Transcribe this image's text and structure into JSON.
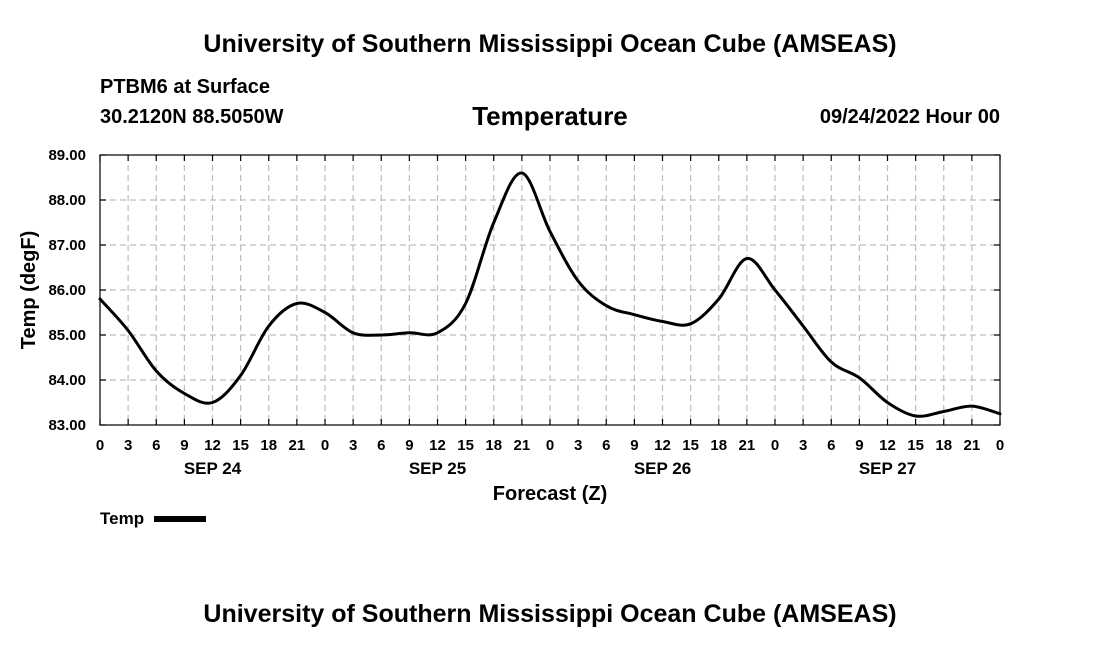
{
  "header": {
    "title": "University of Southern Mississippi Ocean Cube (AMSEAS)",
    "station": "PTBM6 at Surface",
    "coordinates": "30.2120N  88.5050W",
    "variable": "Temperature",
    "datetime": "09/24/2022 Hour 00"
  },
  "footer": {
    "title": "University of Southern Mississippi Ocean Cube (AMSEAS)"
  },
  "legend": {
    "label": "Temp",
    "color": "#000000"
  },
  "chart_data": {
    "type": "line",
    "title": "Temperature",
    "xlabel": "Forecast (Z)",
    "ylabel": "Temp (degF)",
    "xlim": [
      0,
      96
    ],
    "ylim": [
      83,
      89
    ],
    "grid": true,
    "legend_position": "bottom-left",
    "x_tick_values": [
      0,
      3,
      6,
      9,
      12,
      15,
      18,
      21,
      24,
      27,
      30,
      33,
      36,
      39,
      42,
      45,
      48,
      51,
      54,
      57,
      60,
      63,
      66,
      69,
      72,
      75,
      78,
      81,
      84,
      87,
      90,
      93,
      96
    ],
    "x_tick_labels": [
      "0",
      "3",
      "6",
      "9",
      "12",
      "15",
      "18",
      "21",
      "0",
      "3",
      "6",
      "9",
      "12",
      "15",
      "18",
      "21",
      "0",
      "3",
      "6",
      "9",
      "12",
      "15",
      "18",
      "21",
      "0",
      "3",
      "6",
      "9",
      "12",
      "15",
      "18",
      "21",
      "0"
    ],
    "day_labels": [
      {
        "label": "SEP 24",
        "x": 12
      },
      {
        "label": "SEP 25",
        "x": 36
      },
      {
        "label": "SEP 26",
        "x": 60
      },
      {
        "label": "SEP 27",
        "x": 84
      }
    ],
    "y_tick_values": [
      83,
      84,
      85,
      86,
      87,
      88,
      89
    ],
    "y_tick_labels": [
      "83.00",
      "84.00",
      "85.00",
      "86.00",
      "87.00",
      "88.00",
      "89.00"
    ],
    "series": [
      {
        "name": "Temp",
        "color": "#000000",
        "x": [
          0,
          3,
          6,
          9,
          12,
          15,
          18,
          21,
          24,
          27,
          30,
          33,
          36,
          39,
          42,
          45,
          48,
          51,
          54,
          57,
          60,
          63,
          66,
          69,
          72,
          75,
          78,
          81,
          84,
          87,
          90,
          93,
          96
        ],
        "values": [
          85.8,
          85.1,
          84.2,
          83.7,
          83.5,
          84.1,
          85.2,
          85.7,
          85.5,
          85.05,
          85.0,
          85.05,
          85.05,
          85.7,
          87.5,
          88.6,
          87.3,
          86.2,
          85.65,
          85.45,
          85.3,
          85.25,
          85.8,
          86.7,
          86.0,
          85.2,
          84.4,
          84.05,
          83.5,
          83.2,
          83.3,
          83.42,
          83.25
        ]
      }
    ]
  }
}
